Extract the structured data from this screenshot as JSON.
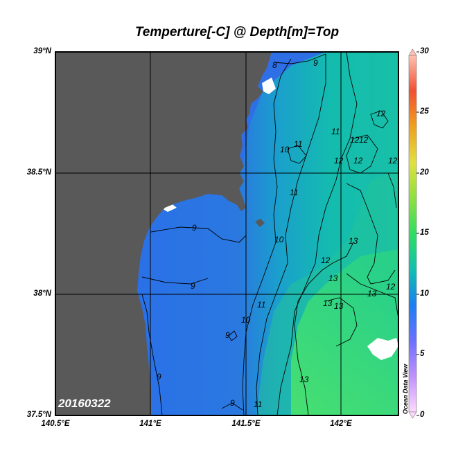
{
  "title": "Temperture[-C] @ Depth[m]=Top",
  "date_stamp": "20160322",
  "watermark": "Ocean Data View",
  "lat_labels": [
    "39°N",
    "38.5°N",
    "38°N",
    "37.5°N"
  ],
  "lon_labels": [
    "140.5°E",
    "141°E",
    "141.5°E",
    "142°E"
  ],
  "colorbar": {
    "min": 0,
    "max": 30,
    "tick_labels": [
      "30",
      "25",
      "20",
      "15",
      "10",
      "5",
      "0"
    ]
  },
  "colors": {
    "land": "#5a5a5a",
    "ocean_cold": "#2a6fe0",
    "ocean_mid": "#12b8b0",
    "ocean_warm": "#3fdf6a"
  },
  "contour_labels": [
    {
      "text": "9"
    },
    {
      "text": "8"
    },
    {
      "text": "9"
    },
    {
      "text": "9"
    },
    {
      "text": "9"
    },
    {
      "text": "9"
    },
    {
      "text": "9"
    },
    {
      "text": "10"
    },
    {
      "text": "10"
    },
    {
      "text": "10"
    },
    {
      "text": "11"
    },
    {
      "text": "11"
    },
    {
      "text": "11"
    },
    {
      "text": "11"
    },
    {
      "text": "11"
    },
    {
      "text": "12"
    },
    {
      "text": "12"
    },
    {
      "text": "12"
    },
    {
      "text": "12"
    },
    {
      "text": "12"
    },
    {
      "text": "12"
    },
    {
      "text": "12"
    },
    {
      "text": "12"
    },
    {
      "text": "13"
    },
    {
      "text": "13"
    },
    {
      "text": "13"
    },
    {
      "text": "13"
    },
    {
      "text": "13"
    },
    {
      "text": "13"
    }
  ]
}
